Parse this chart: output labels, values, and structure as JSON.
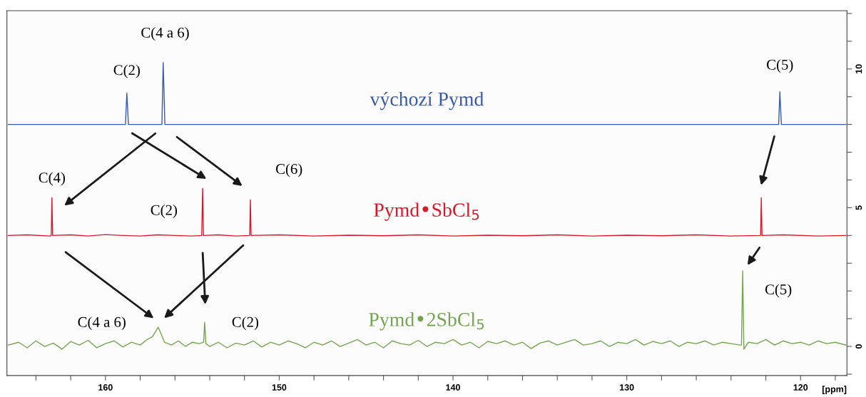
{
  "chart_data": {
    "type": "line",
    "xlabel": "[ppm]",
    "xlim": [
      165.67,
      117.33
    ],
    "ylim": [
      -1.05,
      12.1
    ],
    "xticks": [
      {
        "value": 164,
        "label": null
      },
      {
        "value": 162,
        "label": null
      },
      160,
      {
        "value": 158,
        "label": null
      },
      {
        "value": 156,
        "label": null
      },
      {
        "value": 154,
        "label": null
      },
      {
        "value": 152,
        "label": null
      },
      150,
      {
        "value": 148,
        "label": null
      },
      {
        "value": 146,
        "label": null
      },
      {
        "value": 144,
        "label": null
      },
      {
        "value": 142,
        "label": null
      },
      140,
      {
        "value": 138,
        "label": null
      },
      {
        "value": 136,
        "label": null
      },
      {
        "value": 134,
        "label": null
      },
      {
        "value": 132,
        "label": null
      },
      130,
      {
        "value": 128,
        "label": null
      },
      {
        "value": 126,
        "label": null
      },
      {
        "value": 124,
        "label": null
      },
      {
        "value": 122,
        "label": null
      },
      120,
      {
        "value": 118,
        "label": null
      }
    ],
    "yticks": [
      {
        "value": -1,
        "label": null
      },
      0,
      {
        "value": 1,
        "label": null
      },
      {
        "value": 2,
        "label": null
      },
      {
        "value": 3,
        "label": null
      },
      {
        "value": 4,
        "label": null
      },
      5,
      {
        "value": 6,
        "label": null
      },
      {
        "value": 7,
        "label": null
      },
      {
        "value": 8,
        "label": null
      },
      {
        "value": 9,
        "label": null
      },
      10,
      {
        "value": 11,
        "label": null
      },
      {
        "value": 12,
        "label": null
      }
    ],
    "grid": false,
    "legend": false,
    "marker": "none",
    "line_style": "solid",
    "series": [
      {
        "name": "výchozí Pymd",
        "color": "#3a5ba8",
        "x": [
          165.6,
          158.85,
          158.77,
          158.72,
          158.68,
          156.75,
          156.68,
          156.64,
          156.58,
          121.26,
          121.19,
          121.15,
          121.1,
          117.4
        ],
        "values": [
          8.0,
          8.0,
          9.13,
          8.55,
          8.0,
          8.0,
          10.23,
          9.4,
          8.0,
          8.0,
          9.18,
          8.6,
          8.0,
          8.0
        ]
      },
      {
        "name": "Pymd•SbCl$_{5}$",
        "color": "#d9192b",
        "x": [
          165.6,
          164.5,
          163.2,
          163.12,
          163.08,
          163.04,
          162,
          161,
          160,
          159,
          158,
          157,
          156,
          155,
          154.46,
          154.41,
          154.36,
          153.5,
          152.5,
          151.7,
          151.66,
          151.62,
          150,
          148,
          146,
          144,
          142,
          140,
          138,
          136,
          134,
          132,
          130,
          128,
          126,
          124,
          122.3,
          122.26,
          122.22,
          121,
          119,
          117.4
        ],
        "values": [
          4.0,
          4.02,
          3.98,
          4.0,
          5.36,
          4.0,
          4.02,
          3.98,
          4.03,
          4.0,
          3.98,
          4.02,
          4.0,
          3.98,
          4.0,
          5.69,
          4.0,
          4.02,
          3.98,
          4.0,
          5.28,
          4.0,
          4.02,
          3.98,
          4.01,
          3.99,
          4.02,
          3.98,
          4.01,
          3.99,
          4.02,
          3.98,
          4.01,
          3.99,
          4.02,
          3.98,
          4.0,
          5.36,
          4.0,
          4.02,
          3.98,
          4.0
        ]
      },
      {
        "name": "Pymd•2SbCl$_{5}$",
        "color": "#74a451",
        "x": [
          165.6,
          165,
          164.5,
          164,
          163.5,
          163,
          162.5,
          162,
          161.5,
          161,
          160.5,
          160,
          159.5,
          159,
          158.5,
          158,
          157.6,
          157.3,
          157.1,
          156.96,
          156.8,
          156.6,
          156.2,
          155.8,
          155.4,
          155,
          154.6,
          154.35,
          154.29,
          154.22,
          154,
          153.5,
          153,
          152.5,
          152,
          151.5,
          151,
          150.5,
          150,
          149.5,
          149,
          148.5,
          148,
          147.5,
          147,
          146.5,
          146,
          145.5,
          145,
          144.5,
          144,
          143.5,
          143,
          142.5,
          142,
          141.5,
          141,
          140.5,
          140,
          139.5,
          139,
          138.5,
          138,
          137.5,
          137,
          136.5,
          136,
          135.5,
          135,
          134.5,
          134,
          133.5,
          133,
          132.5,
          132,
          131.5,
          131,
          130.5,
          130,
          129.5,
          129,
          128.5,
          128,
          127.5,
          127,
          126.5,
          126,
          125.5,
          125,
          124.5,
          124,
          123.5,
          123.4,
          123.33,
          123.26,
          123,
          122.5,
          122,
          121.5,
          121,
          120.5,
          120,
          119.5,
          119,
          118.5,
          118,
          117.4
        ],
        "values": [
          0.05,
          0.15,
          -0.05,
          0.2,
          0.0,
          0.12,
          -0.1,
          0.18,
          0.05,
          0.22,
          -0.05,
          0.1,
          0.2,
          -0.02,
          0.15,
          0.05,
          0.25,
          0.35,
          0.55,
          0.69,
          0.45,
          0.15,
          0.05,
          0.2,
          0.0,
          0.15,
          0.1,
          0.15,
          0.87,
          0.1,
          0.0,
          0.15,
          -0.05,
          0.12,
          0.05,
          0.2,
          -0.02,
          0.15,
          0.05,
          0.2,
          0.1,
          -0.05,
          0.15,
          0.05,
          0.2,
          0.0,
          0.12,
          0.25,
          0.05,
          0.15,
          -0.05,
          0.2,
          0.1,
          0.05,
          0.22,
          0.0,
          0.15,
          0.1,
          0.25,
          0.05,
          0.15,
          -0.05,
          0.18,
          0.1,
          0.2,
          0.05,
          0.15,
          -0.08,
          0.12,
          0.2,
          0.05,
          0.15,
          0.25,
          0.05,
          0.1,
          0.2,
          0.0,
          0.15,
          0.1,
          0.25,
          0.05,
          0.18,
          0.1,
          0.2,
          0.0,
          0.15,
          0.1,
          0.2,
          0.05,
          0.15,
          0.1,
          0.05,
          0.05,
          2.72,
          -0.1,
          0.15,
          0.1,
          0.25,
          0.05,
          0.2,
          0.1,
          0.15,
          0.05,
          0.2,
          0.1,
          0.15,
          0.05
        ]
      }
    ],
    "annotations": [
      {
        "text": "C(4 a 6)",
        "x": 156.68,
        "y": 10.23
      },
      {
        "text": "C(2)",
        "x": 158.77,
        "y": 9.13
      },
      {
        "text": "C(5)",
        "x": 121.19,
        "y": 9.18
      },
      {
        "text": "C(4)",
        "x": 163.08,
        "y": 5.36
      },
      {
        "text": "C(2)",
        "x": 154.41,
        "y": 5.69
      },
      {
        "text": "C(6)",
        "x": 151.66,
        "y": 5.28
      },
      {
        "text": "C(4 a 6)",
        "x": 156.96,
        "y": 0.69
      },
      {
        "text": "C(2)",
        "x": 154.29,
        "y": 0.87
      },
      {
        "text": "C(5)",
        "x": 123.33,
        "y": 2.72
      }
    ]
  }
}
